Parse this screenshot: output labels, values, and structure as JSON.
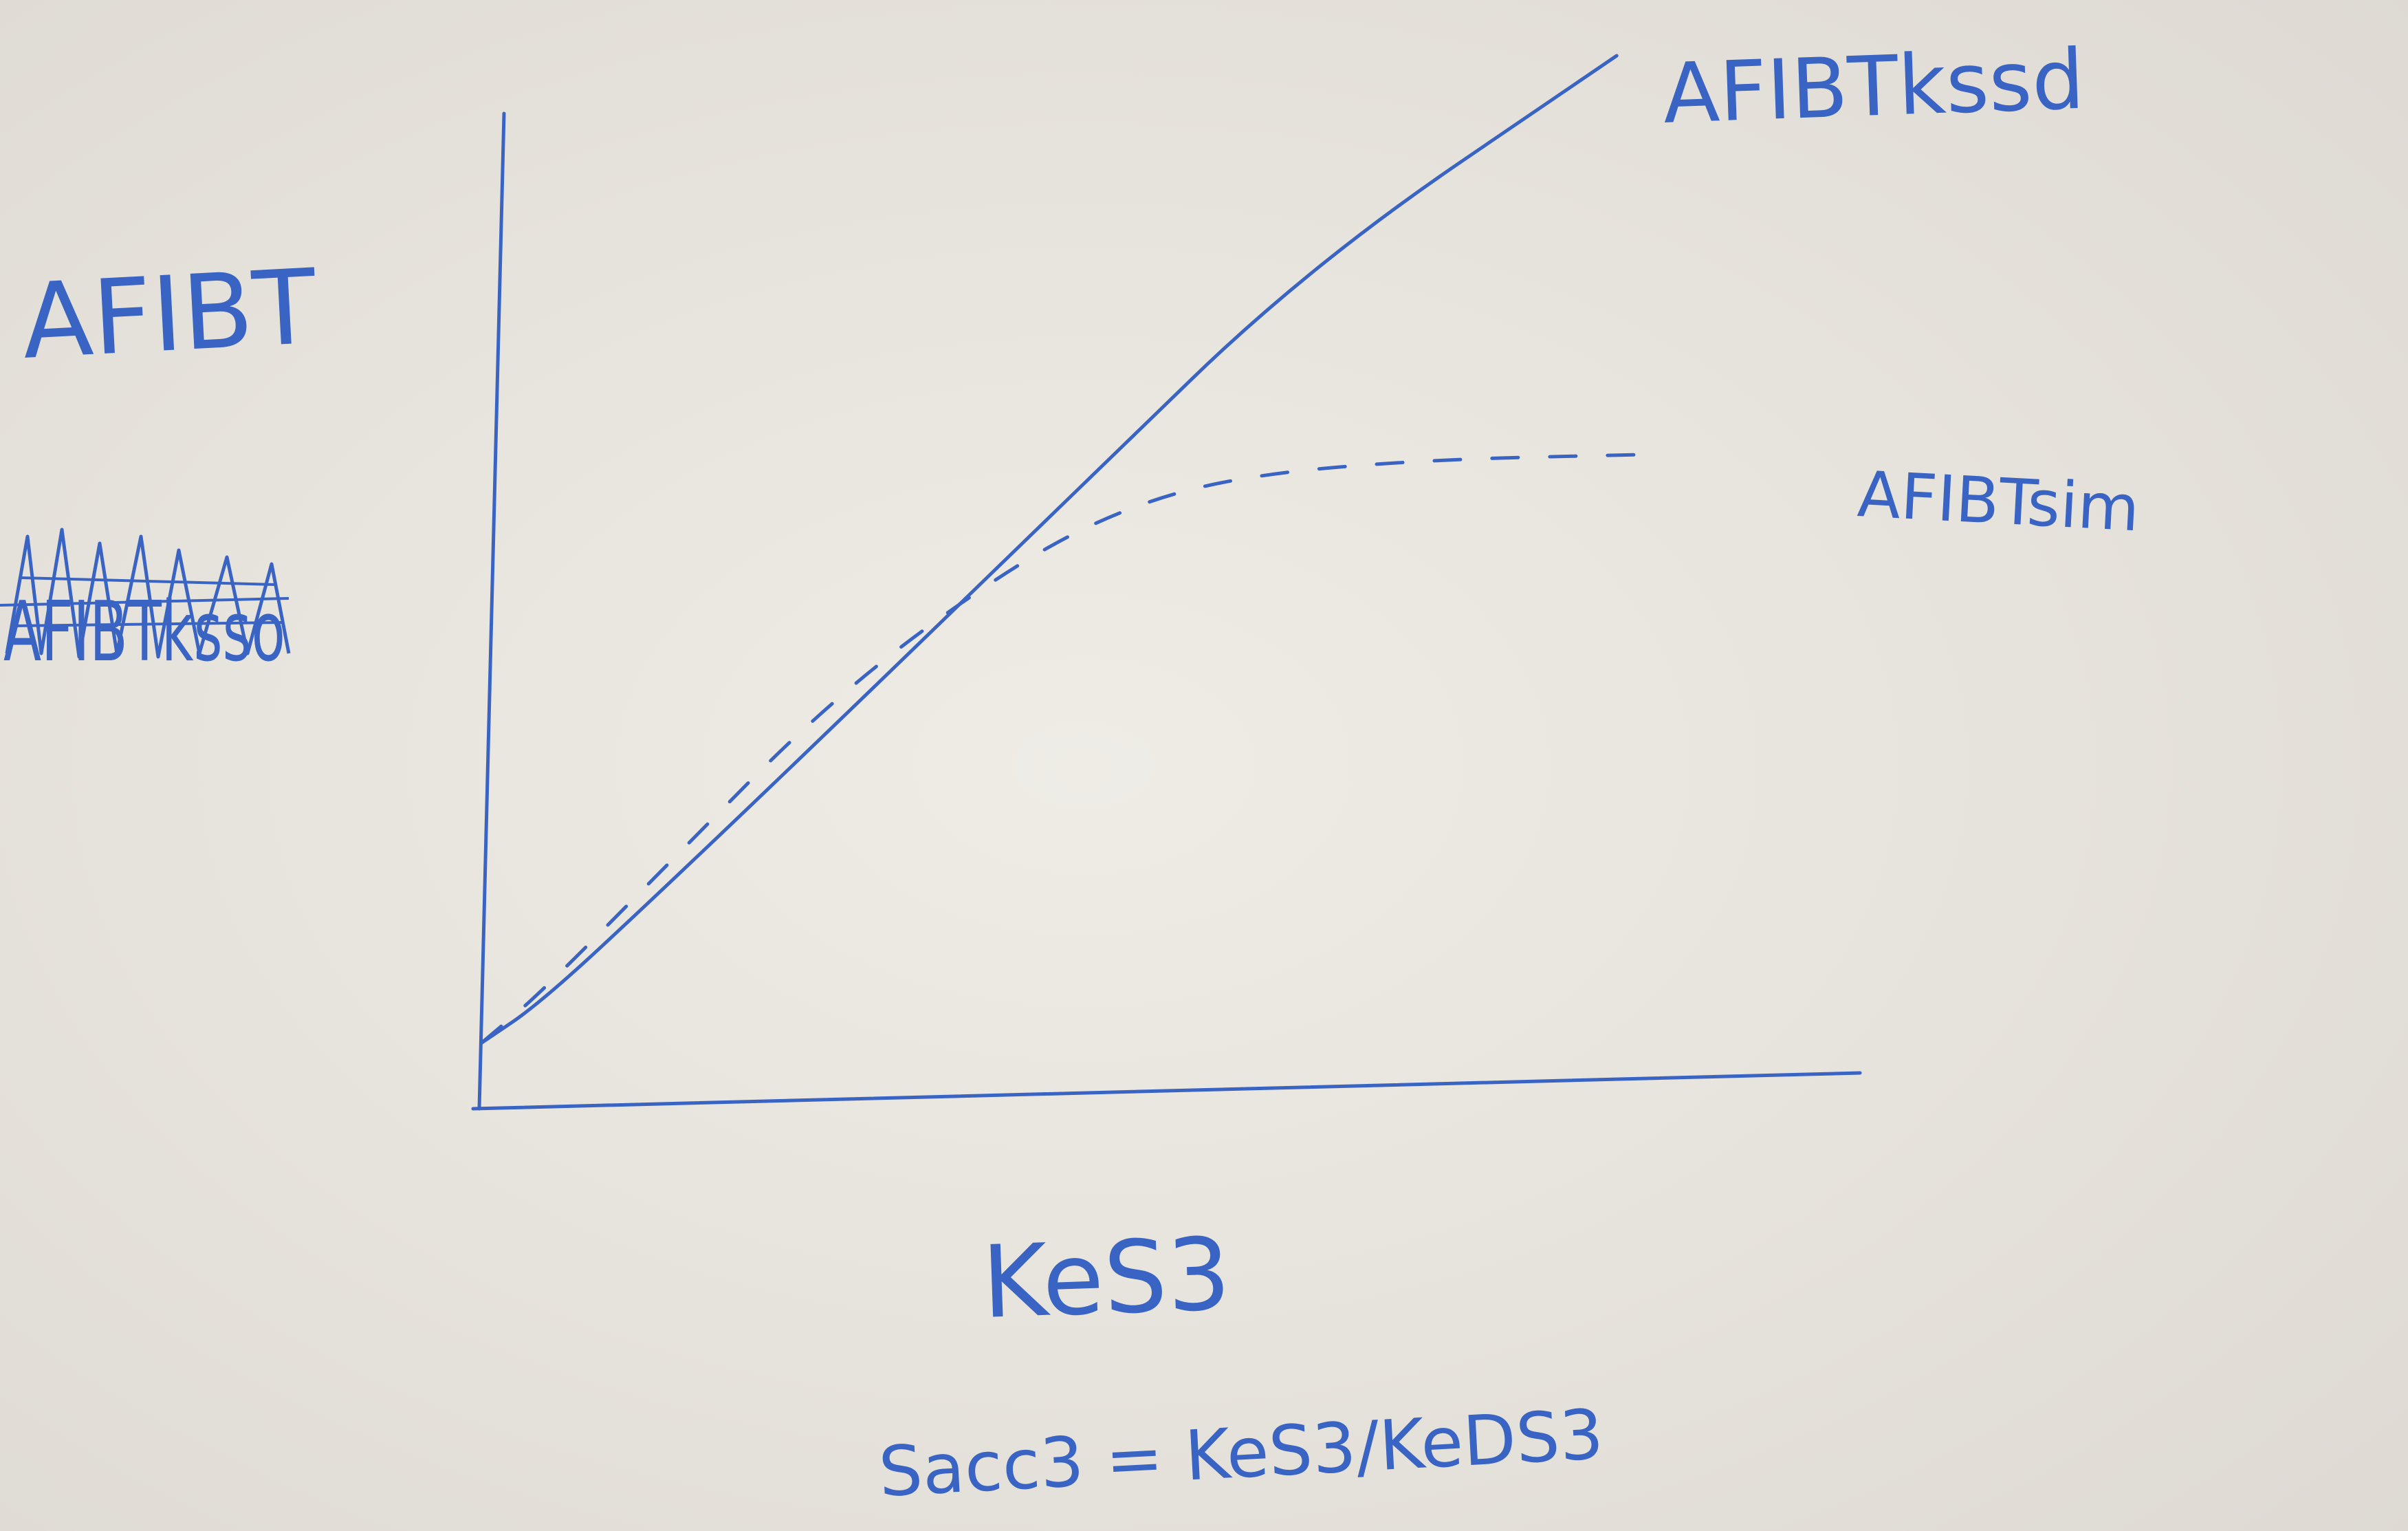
{
  "chart_data": {
    "type": "line",
    "ylabel": "AFIBT",
    "xlabel": "KeS3",
    "caption": "Sacc3 = KeS3/KeDS3",
    "scribble": "AFIBTksso",
    "grid": false,
    "legend": "inline-right",
    "xlim": [
      0,
      10
    ],
    "ylim": [
      0,
      10
    ],
    "series": [
      {
        "name": "AFIBTkssd",
        "style": "solid",
        "x": [
          0,
          0.5,
          1.5,
          3,
          5,
          7,
          9.6
        ],
        "y": [
          0.3,
          0.7,
          1.8,
          3.5,
          5.8,
          8.1,
          10.2
        ]
      },
      {
        "name": "AFIBTsim",
        "style": "dashed",
        "x": [
          0,
          0.5,
          1.5,
          3,
          4.5,
          5.5,
          6.5,
          8,
          9.8
        ],
        "y": [
          0.3,
          0.8,
          2,
          3.8,
          5.1,
          5.7,
          6.0,
          6.15,
          6.2
        ]
      }
    ],
    "colors": {
      "ink": "#3a64c4",
      "paper": "#ece9e3"
    }
  }
}
